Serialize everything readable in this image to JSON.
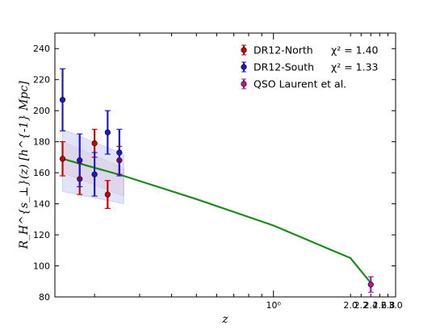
{
  "chart_data": {
    "type": "scatter",
    "xlabel": "z",
    "ylabel": "R_H^{s_⊥}(z) [h^{-1} Mpc]",
    "x_scale": "log",
    "xlim": [
      0.14,
      3.0
    ],
    "ylim": [
      80,
      250
    ],
    "grid": false,
    "legend_position": "top-right",
    "x_ticks": [
      {
        "value": 1.0,
        "label": "10⁰"
      },
      {
        "value": 2.0,
        "label": "2.0"
      },
      {
        "value": 2.2,
        "label": "2.2"
      },
      {
        "value": 2.4,
        "label": "2.4"
      },
      {
        "value": 2.6,
        "label": "2.6"
      },
      {
        "value": 2.8,
        "label": "2.8"
      },
      {
        "value": 3.0,
        "label": "3.0"
      }
    ],
    "y_ticks": [
      80,
      100,
      120,
      140,
      160,
      180,
      200,
      220,
      240
    ],
    "series": [
      {
        "name": "DR12-North χ² = 1.40",
        "legend_label": "DR12-North",
        "legend_chi": "χ² = 1.40",
        "color": "#cc0000",
        "x": [
          0.15,
          0.175,
          0.2,
          0.225,
          0.25
        ],
        "y": [
          169,
          156,
          179,
          146,
          168
        ],
        "yerr": [
          11,
          10,
          9,
          9,
          9
        ],
        "band": {
          "x": [
            0.15,
            0.26
          ],
          "upper": [
            180,
            163
          ],
          "lower": [
            160,
            145
          ],
          "color": "#f2c4cc"
        }
      },
      {
        "name": "DR12-South χ² = 1.33",
        "legend_label": "DR12-South",
        "legend_chi": "χ² = 1.33",
        "color": "#1a1acc",
        "x": [
          0.15,
          0.175,
          0.2,
          0.225,
          0.25
        ],
        "y": [
          207,
          168,
          159,
          186,
          173
        ],
        "yerr": [
          20,
          17,
          14,
          14,
          15
        ],
        "band": {
          "x": [
            0.15,
            0.26
          ],
          "upper": [
            188,
            172
          ],
          "lower": [
            148,
            140
          ],
          "color": "#c9cdf2"
        }
      },
      {
        "name": "QSO Laurent et al.",
        "legend_label": "QSO Laurent et al.",
        "legend_chi": "",
        "color": "#b0179c",
        "x": [
          2.4
        ],
        "y": [
          88
        ],
        "yerr": [
          5
        ]
      }
    ],
    "model_curve": {
      "color": "#1a8a1a",
      "x": [
        0.15,
        0.26,
        0.5,
        1.0,
        2.0,
        2.4
      ],
      "y": [
        169,
        158,
        143,
        126,
        105,
        89
      ]
    }
  }
}
